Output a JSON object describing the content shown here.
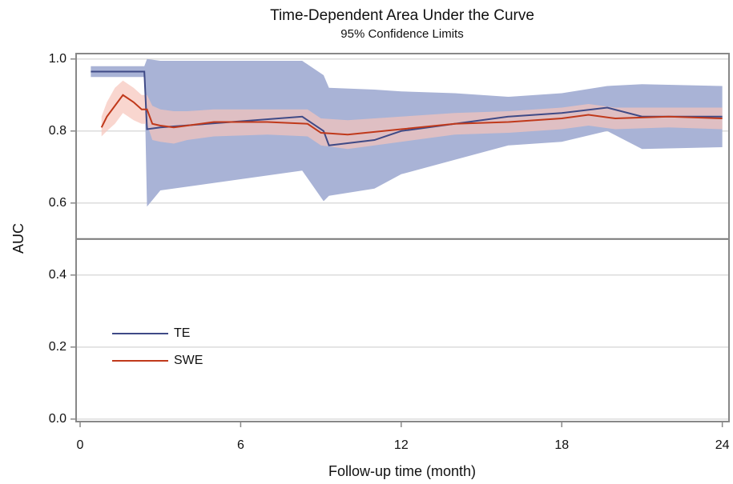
{
  "chart_data": {
    "type": "line",
    "title": "Time-Dependent Area Under the Curve",
    "subtitle": "95% Confidence Limits",
    "x_label": "Follow-up time (month)",
    "y_label": "AUC",
    "xlim": [
      -0.15,
      24.25
    ],
    "ylim": [
      -0.007,
      1.015
    ],
    "xticks": [
      0,
      6,
      12,
      18,
      24
    ],
    "yticks": [
      {
        "value": 0,
        "label": "0.0"
      },
      0.2,
      0.4,
      0.6,
      0.8,
      {
        "value": 1,
        "label": "1.0"
      }
    ],
    "grid": true,
    "reference_line": 0.5,
    "legend": "lower left",
    "series": [
      {
        "name": "TE",
        "color": "#3f4a86",
        "band_color": "#a9b3d6",
        "x": [
          0.4,
          2.4,
          2.5,
          3,
          8.3,
          9.1,
          9.3,
          11,
          12,
          14,
          16,
          18,
          19.7,
          21,
          24
        ],
        "values": [
          0.965,
          0.965,
          0.805,
          0.81,
          0.84,
          0.8,
          0.76,
          0.775,
          0.8,
          0.82,
          0.84,
          0.85,
          0.865,
          0.84,
          0.84
        ],
        "upper": [
          0.98,
          0.98,
          1.0,
          0.995,
          0.995,
          0.955,
          0.92,
          0.915,
          0.91,
          0.905,
          0.895,
          0.905,
          0.925,
          0.93,
          0.925
        ],
        "lower": [
          0.95,
          0.95,
          0.59,
          0.635,
          0.69,
          0.605,
          0.62,
          0.64,
          0.68,
          0.72,
          0.76,
          0.77,
          0.8,
          0.75,
          0.755
        ]
      },
      {
        "name": "SWE",
        "color": "#c0391b",
        "band_color": "#f7c4bb",
        "x": [
          0.8,
          1.0,
          1.3,
          1.6,
          2.0,
          2.3,
          2.5,
          2.7,
          3,
          3.5,
          4,
          5,
          7,
          8.5,
          9,
          10,
          12,
          14,
          16,
          18,
          19,
          20,
          22,
          24
        ],
        "values": [
          0.81,
          0.84,
          0.87,
          0.9,
          0.88,
          0.86,
          0.86,
          0.82,
          0.815,
          0.81,
          0.815,
          0.825,
          0.825,
          0.82,
          0.795,
          0.79,
          0.805,
          0.82,
          0.825,
          0.835,
          0.845,
          0.835,
          0.84,
          0.835
        ],
        "upper": [
          0.84,
          0.88,
          0.92,
          0.94,
          0.92,
          0.9,
          0.9,
          0.87,
          0.86,
          0.855,
          0.855,
          0.86,
          0.86,
          0.86,
          0.835,
          0.83,
          0.84,
          0.85,
          0.855,
          0.865,
          0.875,
          0.865,
          0.865,
          0.865
        ],
        "lower": [
          0.785,
          0.8,
          0.82,
          0.85,
          0.83,
          0.82,
          0.82,
          0.775,
          0.77,
          0.765,
          0.775,
          0.785,
          0.79,
          0.785,
          0.76,
          0.75,
          0.77,
          0.79,
          0.795,
          0.805,
          0.815,
          0.805,
          0.81,
          0.805
        ]
      }
    ]
  }
}
